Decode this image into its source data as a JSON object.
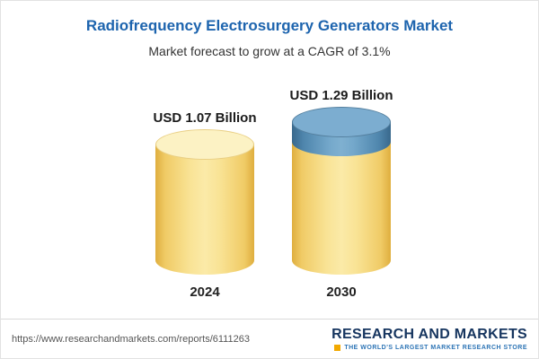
{
  "header": {
    "title": "Radiofrequency Electrosurgery Generators Market",
    "subtitle": "Market forecast to grow at a CAGR of 3.1%"
  },
  "chart_data": {
    "type": "bar",
    "bar_style": "3d-cylinder",
    "title": "Radiofrequency Electrosurgery Generators Market",
    "subtitle": "Market forecast to grow at a CAGR of 3.1%",
    "cagr": "3.1%",
    "unit": "USD Billion",
    "categories": [
      "2024",
      "2030"
    ],
    "values": [
      1.07,
      1.29
    ],
    "value_labels": [
      "USD 1.07 Billion",
      "USD 1.29 Billion"
    ],
    "legend": "none",
    "grid": "off",
    "colors": {
      "bar_fill": "#f6d77c",
      "growth_segment_fill": "#6b9dc2",
      "title_text": "#1d64ae"
    },
    "notes": "2030 cylinder has a blue top segment representing growth above the 2024 baseline"
  },
  "footer": {
    "url": "https://www.researchandmarkets.com/reports/6111263",
    "logo": {
      "name": "RESEARCH AND MARKETS",
      "tagline": "THE WORLD'S LARGEST MARKET RESEARCH STORE"
    }
  }
}
